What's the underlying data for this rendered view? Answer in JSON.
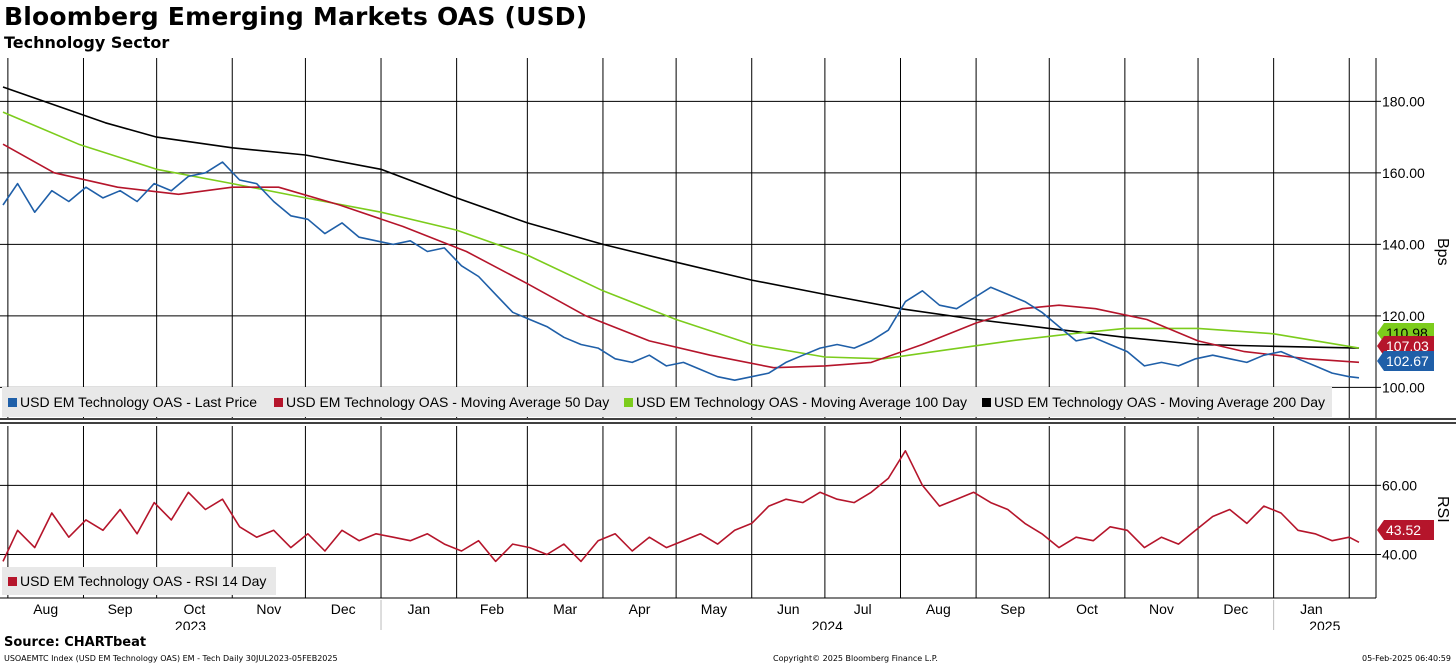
{
  "header": {
    "title": "Bloomberg Emerging Markets OAS (USD)",
    "subtitle": "Technology Sector"
  },
  "footer": {
    "source": "Source: CHARTbeat",
    "index_info": "USOAEMTC Index (USD EM Technology OAS) EM - Tech  Daily 30JUL2023-05FEB2025",
    "copyright": "Copyright© 2025 Bloomberg Finance L.P.",
    "timestamp": "05-Feb-2025 06:40:59"
  },
  "colors": {
    "last_price": "#1f5fa8",
    "ma50": "#b5152b",
    "ma100": "#7ccc1c",
    "ma200": "#000000",
    "rsi": "#b5152b"
  },
  "chart_data": [
    {
      "type": "line",
      "panel": "upper",
      "ylabel": "Bps",
      "ylim": [
        92,
        191
      ],
      "yticks": [
        "180.00",
        "160.00",
        "140.00",
        "120.00",
        "100.00"
      ],
      "ytick_values": [
        180,
        160,
        140,
        120,
        100
      ],
      "grid": true,
      "legend_position": "bottom",
      "x_month_labels": [
        "Aug",
        "Sep",
        "Oct",
        "Nov",
        "Dec",
        "Jan",
        "Feb",
        "Mar",
        "Apr",
        "May",
        "Jun",
        "Jul",
        "Aug",
        "Sep",
        "Oct",
        "Nov",
        "Dec",
        "Jan"
      ],
      "x_year_labels": [
        "2023",
        "2024",
        "2025"
      ],
      "x_range": [
        "2023-07-30",
        "2025-02-05"
      ],
      "series": [
        {
          "name": "USD EM Technology OAS - Last Price",
          "color": "#1f5fa8",
          "last_value_label": "102.67",
          "points": [
            [
              "2023-07-30",
              151
            ],
            [
              "2023-08-05",
              157
            ],
            [
              "2023-08-12",
              149
            ],
            [
              "2023-08-19",
              155
            ],
            [
              "2023-08-26",
              152
            ],
            [
              "2023-09-02",
              156
            ],
            [
              "2023-09-09",
              153
            ],
            [
              "2023-09-16",
              155
            ],
            [
              "2023-09-23",
              152
            ],
            [
              "2023-09-30",
              157
            ],
            [
              "2023-10-07",
              155
            ],
            [
              "2023-10-14",
              159
            ],
            [
              "2023-10-21",
              160
            ],
            [
              "2023-10-28",
              163
            ],
            [
              "2023-11-04",
              158
            ],
            [
              "2023-11-11",
              157
            ],
            [
              "2023-11-18",
              152
            ],
            [
              "2023-11-25",
              148
            ],
            [
              "2023-12-02",
              147
            ],
            [
              "2023-12-09",
              143
            ],
            [
              "2023-12-16",
              146
            ],
            [
              "2023-12-23",
              142
            ],
            [
              "2023-12-30",
              141
            ],
            [
              "2024-01-06",
              140
            ],
            [
              "2024-01-13",
              141
            ],
            [
              "2024-01-20",
              138
            ],
            [
              "2024-01-27",
              139
            ],
            [
              "2024-02-03",
              134
            ],
            [
              "2024-02-10",
              131
            ],
            [
              "2024-02-17",
              126
            ],
            [
              "2024-02-24",
              121
            ],
            [
              "2024-03-02",
              119
            ],
            [
              "2024-03-09",
              117
            ],
            [
              "2024-03-16",
              114
            ],
            [
              "2024-03-23",
              112
            ],
            [
              "2024-03-30",
              111
            ],
            [
              "2024-04-06",
              108
            ],
            [
              "2024-04-13",
              107
            ],
            [
              "2024-04-20",
              109
            ],
            [
              "2024-04-27",
              106
            ],
            [
              "2024-05-04",
              107
            ],
            [
              "2024-05-11",
              105
            ],
            [
              "2024-05-18",
              103
            ],
            [
              "2024-05-25",
              102
            ],
            [
              "2024-06-01",
              103
            ],
            [
              "2024-06-08",
              104
            ],
            [
              "2024-06-15",
              107
            ],
            [
              "2024-06-22",
              109
            ],
            [
              "2024-06-29",
              111
            ],
            [
              "2024-07-06",
              112
            ],
            [
              "2024-07-13",
              111
            ],
            [
              "2024-07-20",
              113
            ],
            [
              "2024-07-27",
              116
            ],
            [
              "2024-08-03",
              124
            ],
            [
              "2024-08-10",
              127
            ],
            [
              "2024-08-17",
              123
            ],
            [
              "2024-08-24",
              122
            ],
            [
              "2024-08-31",
              125
            ],
            [
              "2024-09-07",
              128
            ],
            [
              "2024-09-14",
              126
            ],
            [
              "2024-09-21",
              124
            ],
            [
              "2024-09-28",
              121
            ],
            [
              "2024-10-05",
              117
            ],
            [
              "2024-10-12",
              113
            ],
            [
              "2024-10-19",
              114
            ],
            [
              "2024-10-26",
              112
            ],
            [
              "2024-11-02",
              110
            ],
            [
              "2024-11-09",
              106
            ],
            [
              "2024-11-16",
              107
            ],
            [
              "2024-11-23",
              106
            ],
            [
              "2024-11-30",
              108
            ],
            [
              "2024-12-07",
              109
            ],
            [
              "2024-12-14",
              108
            ],
            [
              "2024-12-21",
              107
            ],
            [
              "2024-12-28",
              109
            ],
            [
              "2025-01-04",
              110
            ],
            [
              "2025-01-11",
              108
            ],
            [
              "2025-01-18",
              106
            ],
            [
              "2025-01-25",
              104
            ],
            [
              "2025-02-01",
              103
            ],
            [
              "2025-02-05",
              102.67
            ]
          ]
        },
        {
          "name": "USD EM Technology OAS - Moving Average 50 Day",
          "color": "#b5152b",
          "last_value_label": "107.03",
          "points": [
            [
              "2023-07-30",
              168
            ],
            [
              "2023-08-20",
              160
            ],
            [
              "2023-09-15",
              156
            ],
            [
              "2023-10-10",
              154
            ],
            [
              "2023-11-01",
              156
            ],
            [
              "2023-11-20",
              156
            ],
            [
              "2023-12-15",
              151
            ],
            [
              "2024-01-10",
              145
            ],
            [
              "2024-02-05",
              138
            ],
            [
              "2024-03-01",
              129
            ],
            [
              "2024-03-25",
              120
            ],
            [
              "2024-04-20",
              113
            ],
            [
              "2024-05-15",
              109
            ],
            [
              "2024-06-10",
              105.5
            ],
            [
              "2024-07-01",
              106
            ],
            [
              "2024-07-20",
              107
            ],
            [
              "2024-08-10",
              112
            ],
            [
              "2024-09-01",
              118
            ],
            [
              "2024-09-20",
              122
            ],
            [
              "2024-10-05",
              123
            ],
            [
              "2024-10-20",
              122
            ],
            [
              "2024-11-10",
              119
            ],
            [
              "2024-12-01",
              113
            ],
            [
              "2024-12-20",
              110
            ],
            [
              "2025-01-15",
              108
            ],
            [
              "2025-02-05",
              107.03
            ]
          ]
        },
        {
          "name": "USD EM Technology OAS - Moving Average 100 Day",
          "color": "#7ccc1c",
          "last_value_label": "110.98",
          "points": [
            [
              "2023-07-30",
              177
            ],
            [
              "2023-08-30",
              168
            ],
            [
              "2023-10-01",
              161
            ],
            [
              "2023-11-01",
              157
            ],
            [
              "2023-12-01",
              153
            ],
            [
              "2024-01-01",
              149
            ],
            [
              "2024-02-01",
              144
            ],
            [
              "2024-03-01",
              137
            ],
            [
              "2024-04-01",
              127
            ],
            [
              "2024-05-01",
              119
            ],
            [
              "2024-06-01",
              112
            ],
            [
              "2024-07-01",
              108.5
            ],
            [
              "2024-07-25",
              108
            ],
            [
              "2024-08-20",
              110.5
            ],
            [
              "2024-09-15",
              113
            ],
            [
              "2024-10-10",
              115
            ],
            [
              "2024-11-01",
              116.5
            ],
            [
              "2024-12-01",
              116.5
            ],
            [
              "2025-01-01",
              115
            ],
            [
              "2025-02-05",
              110.98
            ]
          ]
        },
        {
          "name": "USD EM Technology OAS - Moving Average 200 Day",
          "color": "#000000",
          "last_value_label": "",
          "points": [
            [
              "2023-07-30",
              184
            ],
            [
              "2023-08-20",
              179
            ],
            [
              "2023-09-10",
              174
            ],
            [
              "2023-10-01",
              170
            ],
            [
              "2023-11-01",
              167
            ],
            [
              "2023-12-01",
              165
            ],
            [
              "2024-01-01",
              161
            ],
            [
              "2024-02-01",
              153
            ],
            [
              "2024-03-01",
              146
            ],
            [
              "2024-04-01",
              140
            ],
            [
              "2024-05-01",
              135
            ],
            [
              "2024-06-01",
              130
            ],
            [
              "2024-07-01",
              126
            ],
            [
              "2024-08-01",
              122
            ],
            [
              "2024-09-01",
              119
            ],
            [
              "2024-10-01",
              116.5
            ],
            [
              "2024-11-01",
              114
            ],
            [
              "2024-12-01",
              112
            ],
            [
              "2025-01-01",
              111.5
            ],
            [
              "2025-02-05",
              111
            ]
          ]
        }
      ]
    },
    {
      "type": "line",
      "panel": "lower",
      "ylabel": "RSI",
      "ylim": [
        28,
        76
      ],
      "yticks": [
        "60.00",
        "40.00"
      ],
      "ytick_values": [
        60,
        40
      ],
      "grid": true,
      "legend_position": "bottom-left",
      "series": [
        {
          "name": "USD EM Technology OAS - RSI 14 Day",
          "color": "#b5152b",
          "last_value_label": "43.52",
          "points": [
            [
              "2023-07-30",
              38
            ],
            [
              "2023-08-05",
              47
            ],
            [
              "2023-08-12",
              42
            ],
            [
              "2023-08-19",
              52
            ],
            [
              "2023-08-26",
              45
            ],
            [
              "2023-09-02",
              50
            ],
            [
              "2023-09-09",
              47
            ],
            [
              "2023-09-16",
              53
            ],
            [
              "2023-09-23",
              46
            ],
            [
              "2023-09-30",
              55
            ],
            [
              "2023-10-07",
              50
            ],
            [
              "2023-10-14",
              58
            ],
            [
              "2023-10-21",
              53
            ],
            [
              "2023-10-28",
              56
            ],
            [
              "2023-11-04",
              48
            ],
            [
              "2023-11-11",
              45
            ],
            [
              "2023-11-18",
              47
            ],
            [
              "2023-11-25",
              42
            ],
            [
              "2023-12-02",
              46
            ],
            [
              "2023-12-09",
              41
            ],
            [
              "2023-12-16",
              47
            ],
            [
              "2023-12-23",
              44
            ],
            [
              "2023-12-30",
              46
            ],
            [
              "2024-01-06",
              45
            ],
            [
              "2024-01-13",
              44
            ],
            [
              "2024-01-20",
              46
            ],
            [
              "2024-01-27",
              43
            ],
            [
              "2024-02-03",
              41
            ],
            [
              "2024-02-10",
              44
            ],
            [
              "2024-02-17",
              38
            ],
            [
              "2024-02-24",
              43
            ],
            [
              "2024-03-02",
              42
            ],
            [
              "2024-03-09",
              40
            ],
            [
              "2024-03-16",
              43
            ],
            [
              "2024-03-23",
              38
            ],
            [
              "2024-03-30",
              44
            ],
            [
              "2024-04-06",
              46
            ],
            [
              "2024-04-13",
              41
            ],
            [
              "2024-04-20",
              45
            ],
            [
              "2024-04-27",
              42
            ],
            [
              "2024-05-04",
              44
            ],
            [
              "2024-05-11",
              46
            ],
            [
              "2024-05-18",
              43
            ],
            [
              "2024-05-25",
              47
            ],
            [
              "2024-06-01",
              49
            ],
            [
              "2024-06-08",
              54
            ],
            [
              "2024-06-15",
              56
            ],
            [
              "2024-06-22",
              55
            ],
            [
              "2024-06-29",
              58
            ],
            [
              "2024-07-06",
              56
            ],
            [
              "2024-07-13",
              55
            ],
            [
              "2024-07-20",
              58
            ],
            [
              "2024-07-27",
              62
            ],
            [
              "2024-08-03",
              70
            ],
            [
              "2024-08-10",
              60
            ],
            [
              "2024-08-17",
              54
            ],
            [
              "2024-08-24",
              56
            ],
            [
              "2024-08-31",
              58
            ],
            [
              "2024-09-07",
              55
            ],
            [
              "2024-09-14",
              53
            ],
            [
              "2024-09-21",
              49
            ],
            [
              "2024-09-28",
              46
            ],
            [
              "2024-10-05",
              42
            ],
            [
              "2024-10-12",
              45
            ],
            [
              "2024-10-19",
              44
            ],
            [
              "2024-10-26",
              48
            ],
            [
              "2024-11-02",
              47
            ],
            [
              "2024-11-09",
              42
            ],
            [
              "2024-11-16",
              45
            ],
            [
              "2024-11-23",
              43
            ],
            [
              "2024-11-30",
              47
            ],
            [
              "2024-12-07",
              51
            ],
            [
              "2024-12-14",
              53
            ],
            [
              "2024-12-21",
              49
            ],
            [
              "2024-12-28",
              54
            ],
            [
              "2025-01-04",
              52
            ],
            [
              "2025-01-11",
              47
            ],
            [
              "2025-01-18",
              46
            ],
            [
              "2025-01-25",
              44
            ],
            [
              "2025-02-01",
              45
            ],
            [
              "2025-02-05",
              43.52
            ]
          ]
        }
      ]
    }
  ]
}
